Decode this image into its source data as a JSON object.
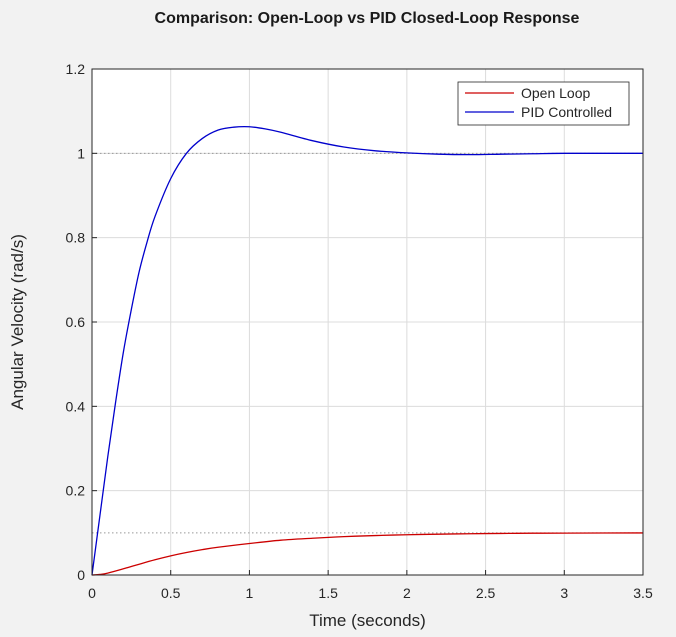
{
  "chart_data": {
    "type": "line",
    "title": "Comparison: Open-Loop vs PID Closed-Loop Response",
    "xlabel": "Time (seconds)",
    "ylabel": "Angular Velocity (rad/s)",
    "xlim": [
      0,
      3.5
    ],
    "ylim": [
      0,
      1.2
    ],
    "xticks": [
      0,
      0.5,
      1,
      1.5,
      2,
      2.5,
      3,
      3.5
    ],
    "xtick_labels": [
      "0",
      "0.5",
      "1",
      "1.5",
      "2",
      "2.5",
      "3",
      "3.5"
    ],
    "yticks": [
      0,
      0.2,
      0.4,
      0.6,
      0.8,
      1,
      1.2
    ],
    "ytick_labels": [
      "0",
      "0.2",
      "0.4",
      "0.6",
      "0.8",
      "1",
      "1.2"
    ],
    "grid": true,
    "legend_position": "top-right",
    "reference_lines": [
      {
        "y": 1.0,
        "style": "dotted",
        "color": "#999999"
      },
      {
        "y": 0.1,
        "style": "dotted",
        "color": "#999999"
      }
    ],
    "series": [
      {
        "name": "Open Loop",
        "color": "#cc0000",
        "x": [
          0,
          0.05,
          0.1,
          0.2,
          0.3,
          0.4,
          0.5,
          0.6,
          0.7,
          0.8,
          1.0,
          1.2,
          1.4,
          1.6,
          1.8,
          2.0,
          2.2,
          2.4,
          2.6,
          2.8,
          3.0,
          3.5
        ],
        "y": [
          0,
          0.0013,
          0.0045,
          0.0147,
          0.0256,
          0.0361,
          0.0454,
          0.0533,
          0.0601,
          0.0659,
          0.0747,
          0.0826,
          0.0872,
          0.091,
          0.0935,
          0.0955,
          0.0968,
          0.0978,
          0.0986,
          0.0991,
          0.0994,
          0.0998
        ]
      },
      {
        "name": "PID Controlled",
        "color": "#0000cc",
        "x": [
          0,
          0.05,
          0.1,
          0.15,
          0.2,
          0.25,
          0.3,
          0.35,
          0.4,
          0.5,
          0.6,
          0.7,
          0.8,
          0.9,
          1.0,
          1.1,
          1.2,
          1.4,
          1.6,
          1.8,
          2.0,
          2.2,
          2.4,
          2.6,
          2.8,
          3.0,
          3.5
        ],
        "y": [
          0,
          0.14,
          0.28,
          0.41,
          0.53,
          0.63,
          0.72,
          0.79,
          0.85,
          0.94,
          1.0,
          1.035,
          1.055,
          1.062,
          1.063,
          1.058,
          1.05,
          1.03,
          1.015,
          1.006,
          1.001,
          0.998,
          0.997,
          0.998,
          0.999,
          1.0,
          1.0
        ]
      }
    ]
  }
}
